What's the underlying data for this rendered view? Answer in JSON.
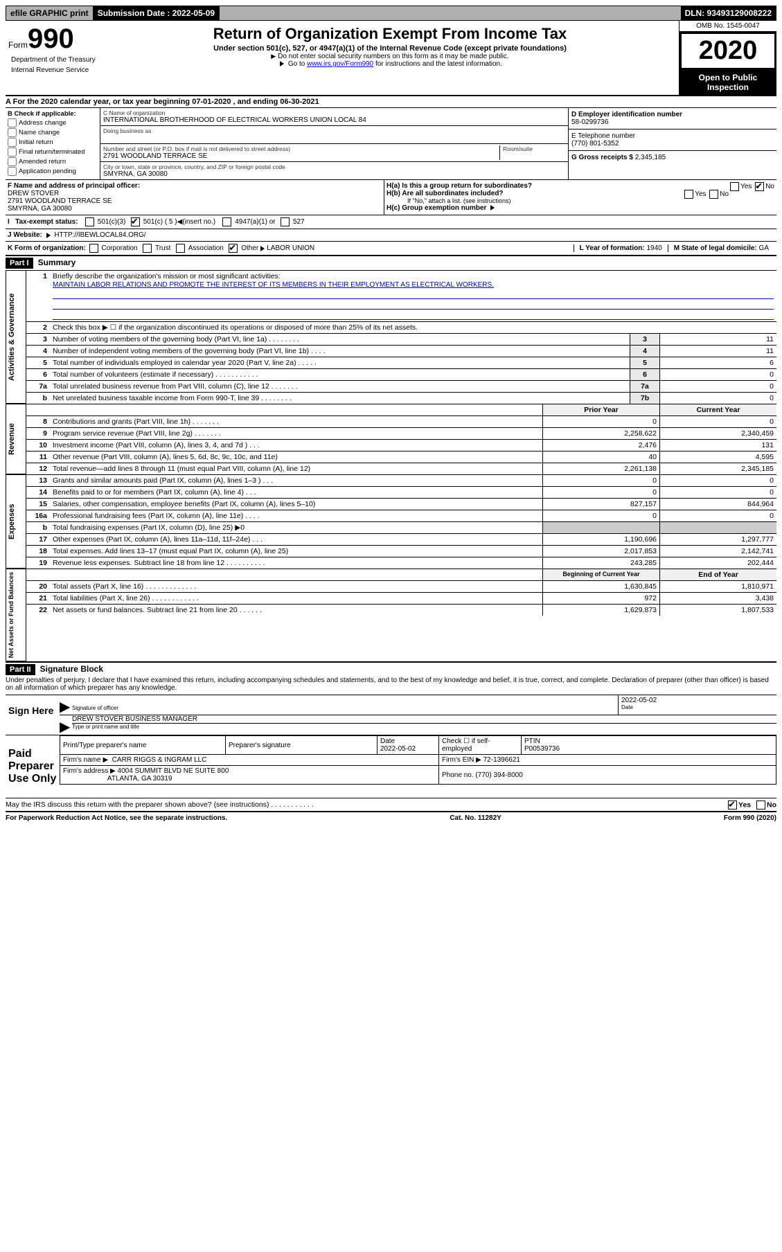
{
  "topbar": {
    "efile": "efile GRAPHIC print",
    "submission_label": "Submission Date : 2022-05-09",
    "dln": "DLN: 93493129008222"
  },
  "header": {
    "form_word": "Form",
    "form_num": "990",
    "title": "Return of Organization Exempt From Income Tax",
    "subtitle": "Under section 501(c), 527, or 4947(a)(1) of the Internal Revenue Code (except private foundations)",
    "note1": "Do not enter social security numbers on this form as it may be made public.",
    "note2_pre": "Go to ",
    "note2_link": "www.irs.gov/Form990",
    "note2_post": " for instructions and the latest information.",
    "omb": "OMB No. 1545-0047",
    "year": "2020",
    "open": "Open to Public Inspection",
    "dept1": "Department of the Treasury",
    "dept2": "Internal Revenue Service"
  },
  "period": "For the 2020 calendar year, or tax year beginning 07-01-2020    , and ending 06-30-2021",
  "checks": {
    "hdr": "B Check if applicable:",
    "items": [
      "Address change",
      "Name change",
      "Initial return",
      "Final return/terminated",
      "Amended return",
      "Application pending"
    ]
  },
  "org": {
    "name_label": "C Name of organization",
    "name": "INTERNATIONAL BROTHERHOOD OF ELECTRICAL WORKERS UNION LOCAL 84",
    "dba_label": "Doing business as",
    "addr_label": "Number and street (or P.O. box if mail is not delivered to street address)",
    "room_label": "Room/suite",
    "addr": "2791 WOODLAND TERRACE SE",
    "city_label": "City or town, state or province, country, and ZIP or foreign postal code",
    "city": "SMYRNA, GA  30080"
  },
  "right": {
    "ein_label": "D Employer identification number",
    "ein": "58-0299736",
    "tel_label": "E Telephone number",
    "tel": "(770) 801-5352",
    "gross_label": "G Gross receipts $ ",
    "gross": "2,345,185"
  },
  "officer": {
    "label": "F  Name and address of principal officer:",
    "name": "DREW STOVER",
    "addr1": "2791 WOODLAND TERRACE SE",
    "addr2": "SMYRNA, GA  30080"
  },
  "h": {
    "a": "H(a)  Is this a group return for subordinates?",
    "b": "H(b)  Are all subordinates included?",
    "b_note": "If \"No,\" attach a list. (see instructions)",
    "c": "H(c)  Group exemption number",
    "yes": "Yes",
    "no": "No"
  },
  "tax_exempt": {
    "label": "Tax-exempt status:",
    "c3": "501(c)(3)",
    "c5": "501(c) ( 5 )",
    "insert": "(insert no.)",
    "a1": "4947(a)(1) or",
    "s527": "527"
  },
  "website": {
    "label": "J     Website:",
    "val": "HTTP://IBEWLOCAL84.ORG/"
  },
  "korg": {
    "label": "K Form of organization:",
    "corp": "Corporation",
    "trust": "Trust",
    "assoc": "Association",
    "other": "Other",
    "otherval": "LABOR UNION",
    "l": "L Year of formation: ",
    "lval": "1940",
    "m": "M State of legal domicile: ",
    "mval": "GA"
  },
  "part1": {
    "hdr": "Part I",
    "title": "Summary",
    "l1": "Briefly describe the organization's mission or most significant activities:",
    "mission": "MAINTAIN LABOR RELATIONS AND PROMOTE THE INTEREST OF ITS MEMBERS IN THEIR EMPLOYMENT AS ELECTRICAL WORKERS.",
    "l2": "Check this box ▶ ☐  if the organization discontinued its operations or disposed of more than 25% of its net assets.",
    "sides": [
      "Activities & Governance",
      "Revenue",
      "Expenses",
      "Net Assets or Fund Balances"
    ],
    "rows_a": [
      {
        "n": "3",
        "t": "Number of voting members of the governing body (Part VI, line 1a)   .    .    .    .    .    .    .    .",
        "box": "3",
        "v": "11"
      },
      {
        "n": "4",
        "t": "Number of independent voting members of the governing body (Part VI, line 1b)   .    .    .    .",
        "box": "4",
        "v": "11"
      },
      {
        "n": "5",
        "t": "Total number of individuals employed in calendar year 2020 (Part V, line 2a)   .    .    .    .    .",
        "box": "5",
        "v": "6"
      },
      {
        "n": "6",
        "t": "Total number of volunteers (estimate if necessary)   .    .    .    .    .    .    .    .    .    .    .",
        "box": "6",
        "v": "0"
      },
      {
        "n": "7a",
        "t": "Total unrelated business revenue from Part VIII, column (C), line 12   .    .    .    .    .    .    .",
        "box": "7a",
        "v": "0"
      },
      {
        "n": "b",
        "t": "Net unrelated business taxable income from Form 990-T, line 39   .    .    .    .    .    .    .    .",
        "box": "7b",
        "v": "0"
      }
    ],
    "col_hdrs": [
      "Prior Year",
      "Current Year"
    ],
    "rows_rev": [
      {
        "n": "8",
        "t": "Contributions and grants (Part VIII, line 1h)   .    .    .    .    .    .    .",
        "p": "0",
        "c": "0"
      },
      {
        "n": "9",
        "t": "Program service revenue (Part VIII, line 2g)   .    .    .    .    .    .    .",
        "p": "2,258,622",
        "c": "2,340,459"
      },
      {
        "n": "10",
        "t": "Investment income (Part VIII, column (A), lines 3, 4, and 7d )   .    .    .",
        "p": "2,476",
        "c": "131"
      },
      {
        "n": "11",
        "t": "Other revenue (Part VIII, column (A), lines 5, 6d, 8c, 9c, 10c, and 11e)",
        "p": "40",
        "c": "4,595"
      },
      {
        "n": "12",
        "t": "Total revenue—add lines 8 through 11 (must equal Part VIII, column (A), line 12)",
        "p": "2,261,138",
        "c": "2,345,185"
      }
    ],
    "rows_exp": [
      {
        "n": "13",
        "t": "Grants and similar amounts paid (Part IX, column (A), lines 1–3 )   .    .    .",
        "p": "0",
        "c": "0"
      },
      {
        "n": "14",
        "t": "Benefits paid to or for members (Part IX, column (A), line 4)   .    .    .",
        "p": "0",
        "c": "0"
      },
      {
        "n": "15",
        "t": "Salaries, other compensation, employee benefits (Part IX, column (A), lines 5–10)",
        "p": "827,157",
        "c": "844,964"
      },
      {
        "n": "16a",
        "t": "Professional fundraising fees (Part IX, column (A), line 11e)   .    .    .    .",
        "p": "0",
        "c": "0"
      },
      {
        "n": "b",
        "t": "Total fundraising expenses (Part IX, column (D), line 25) ▶0",
        "p": "",
        "c": "",
        "gray": true
      },
      {
        "n": "17",
        "t": "Other expenses (Part IX, column (A), lines 11a–11d, 11f–24e)   .    .    .",
        "p": "1,190,696",
        "c": "1,297,777"
      },
      {
        "n": "18",
        "t": "Total expenses. Add lines 13–17 (must equal Part IX, column (A), line 25)",
        "p": "2,017,853",
        "c": "2,142,741"
      },
      {
        "n": "19",
        "t": "Revenue less expenses. Subtract line 18 from line 12   .    .    .    .    .    .    .    .    .    .",
        "p": "243,285",
        "c": "202,444"
      }
    ],
    "col_hdrs2": [
      "Beginning of Current Year",
      "End of Year"
    ],
    "rows_net": [
      {
        "n": "20",
        "t": "Total assets (Part X, line 16)   .    .    .    .    .    .    .    .    .    .    .    .    .",
        "p": "1,630,845",
        "c": "1,810,971"
      },
      {
        "n": "21",
        "t": "Total liabilities (Part X, line 26)   .    .    .    .    .    .    .    .    .    .    .    .",
        "p": "972",
        "c": "3,438"
      },
      {
        "n": "22",
        "t": "Net assets or fund balances. Subtract line 21 from line 20   .    .    .    .    .    .",
        "p": "1,629,873",
        "c": "1,807,533"
      }
    ]
  },
  "part2": {
    "hdr": "Part II",
    "title": "Signature Block",
    "perjury": "Under penalties of perjury, I declare that I have examined this return, including accompanying schedules and statements, and to the best of my knowledge and belief, it is true, correct, and complete. Declaration of preparer (other than officer) is based on all information of which preparer has any knowledge."
  },
  "sign": {
    "here": "Sign Here",
    "sig_officer": "Signature of officer",
    "date": "Date",
    "date_val": "2022-05-02",
    "name": "DREW STOVER  BUSINESS MANAGER",
    "name_label": "Type or print name and title"
  },
  "paid": {
    "title": "Paid Preparer Use Only",
    "cols": [
      "Print/Type preparer's name",
      "Preparer's signature",
      "Date",
      "",
      "PTIN"
    ],
    "date": "2022-05-02",
    "check_label": "Check ☐ if self-employed",
    "ptin": "P00539736",
    "firm_label": "Firm's name   ▶",
    "firm": "CARR RIGGS & INGRAM LLC",
    "ein_label": "Firm's EIN ▶",
    "ein": "72-1396621",
    "addr_label": "Firm's address ▶",
    "addr1": "4004 SUMMIT BLVD NE SUITE 800",
    "addr2": "ATLANTA, GA  30319",
    "phone_label": "Phone no. ",
    "phone": "(770) 394-8000"
  },
  "discuss": "May the IRS discuss this return with the preparer shown above? (see instructions)    .    .    .    .    .    .    .    .    .    .    .",
  "footer": {
    "left": "For Paperwork Reduction Act Notice, see the separate instructions.",
    "mid": "Cat. No. 11282Y",
    "right": "Form 990 (2020)"
  }
}
